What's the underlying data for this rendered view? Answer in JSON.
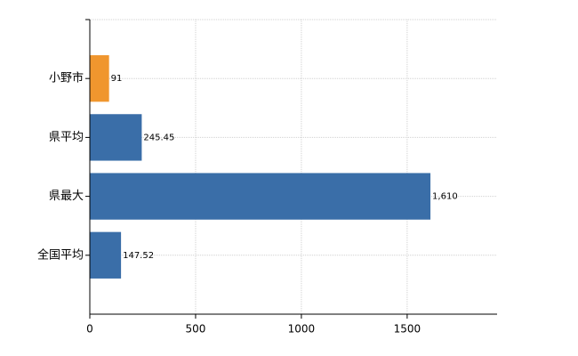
{
  "chart_data": {
    "type": "barh",
    "categories": [
      "小野市",
      "県平均",
      "県最大",
      "全国平均"
    ],
    "values": [
      91,
      245.45,
      1610,
      147.52
    ],
    "value_labels": [
      "91",
      "245.45",
      "1,610",
      "147.52"
    ],
    "colors": [
      "#f0962e",
      "#3a6ea8",
      "#3a6ea8",
      "#3a6ea8"
    ],
    "xlim": [
      0,
      1925
    ],
    "xticks": [
      0,
      500,
      1000,
      1500
    ],
    "grid": true
  }
}
